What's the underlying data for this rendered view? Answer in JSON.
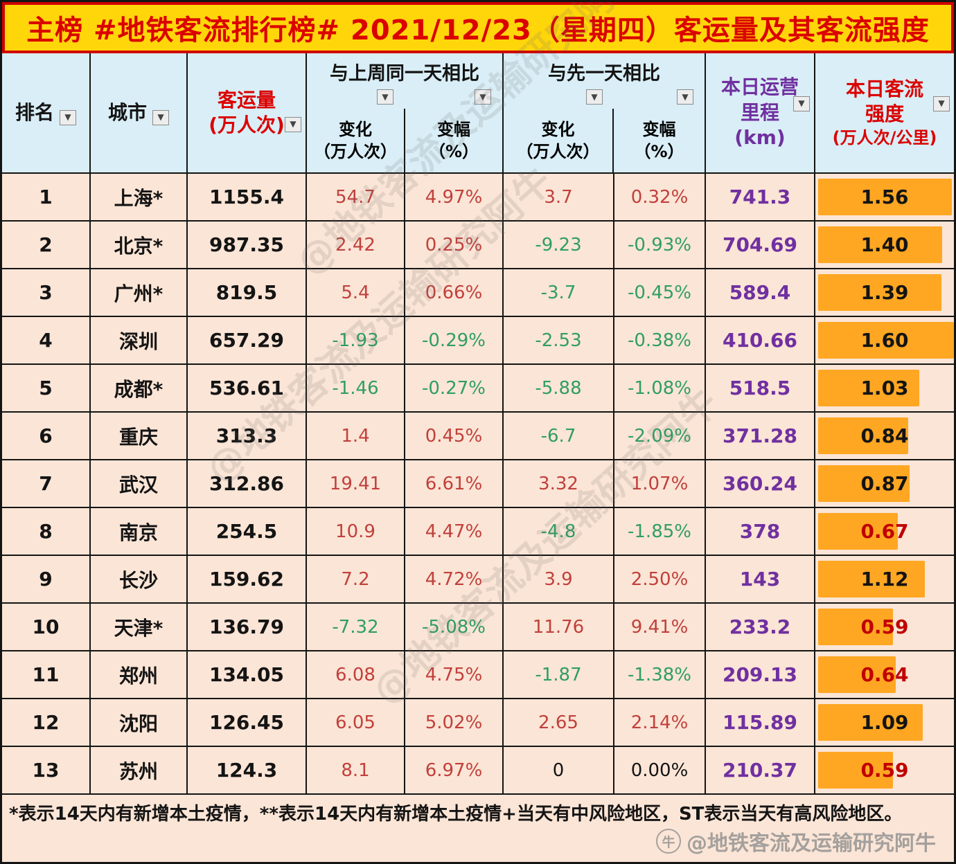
{
  "title": "主榜 #地铁客流排行榜# 2021/12/23（星期四）客运量及其客流强度",
  "header": {
    "rank": "排名",
    "city": "城市",
    "volume_line1": "客运量",
    "volume_line2": "(万人次)",
    "week_group": "与上周同一天相比",
    "day_group": "与先一天相比",
    "change_line1": "变化",
    "change_line2": "（万人次）",
    "pct_line1": "变幅",
    "pct_line2": "（%）",
    "mileage_line1": "本日运营",
    "mileage_line2": "里程",
    "mileage_line3": "(km)",
    "intensity_line1": "本日客流",
    "intensity_line2": "强度",
    "intensity_line3": "(万人次/公里)"
  },
  "chart_data": {
    "type": "table",
    "title": "地铁客流排行榜 2021/12/23（星期四）客运量及其客流强度",
    "columns": [
      "排名",
      "城市",
      "客运量(万人次)",
      "与上周同一天相比 变化(万人次)",
      "与上周同一天相比 变幅(%)",
      "与先一天相比 变化(万人次)",
      "与先一天相比 变幅(%)",
      "本日运营里程(km)",
      "本日客流强度(万人次/公里)"
    ],
    "rows": [
      {
        "rank": "1",
        "city": "上海*",
        "volume": "1155.4",
        "week_change": "54.7",
        "week_pct": "4.97%",
        "day_change": "3.7",
        "day_pct": "0.32%",
        "mileage": "741.3",
        "intensity": "1.56"
      },
      {
        "rank": "2",
        "city": "北京*",
        "volume": "987.35",
        "week_change": "2.42",
        "week_pct": "0.25%",
        "day_change": "-9.23",
        "day_pct": "-0.93%",
        "mileage": "704.69",
        "intensity": "1.40"
      },
      {
        "rank": "3",
        "city": "广州*",
        "volume": "819.5",
        "week_change": "5.4",
        "week_pct": "0.66%",
        "day_change": "-3.7",
        "day_pct": "-0.45%",
        "mileage": "589.4",
        "intensity": "1.39"
      },
      {
        "rank": "4",
        "city": "深圳",
        "volume": "657.29",
        "week_change": "-1.93",
        "week_pct": "-0.29%",
        "day_change": "-2.53",
        "day_pct": "-0.38%",
        "mileage": "410.66",
        "intensity": "1.60"
      },
      {
        "rank": "5",
        "city": "成都*",
        "volume": "536.61",
        "week_change": "-1.46",
        "week_pct": "-0.27%",
        "day_change": "-5.88",
        "day_pct": "-1.08%",
        "mileage": "518.5",
        "intensity": "1.03"
      },
      {
        "rank": "6",
        "city": "重庆",
        "volume": "313.3",
        "week_change": "1.4",
        "week_pct": "0.45%",
        "day_change": "-6.7",
        "day_pct": "-2.09%",
        "mileage": "371.28",
        "intensity": "0.84"
      },
      {
        "rank": "7",
        "city": "武汉",
        "volume": "312.86",
        "week_change": "19.41",
        "week_pct": "6.61%",
        "day_change": "3.32",
        "day_pct": "1.07%",
        "mileage": "360.24",
        "intensity": "0.87"
      },
      {
        "rank": "8",
        "city": "南京",
        "volume": "254.5",
        "week_change": "10.9",
        "week_pct": "4.47%",
        "day_change": "-4.8",
        "day_pct": "-1.85%",
        "mileage": "378",
        "intensity": "0.67"
      },
      {
        "rank": "9",
        "city": "长沙",
        "volume": "159.62",
        "week_change": "7.2",
        "week_pct": "4.72%",
        "day_change": "3.9",
        "day_pct": "2.50%",
        "mileage": "143",
        "intensity": "1.12"
      },
      {
        "rank": "10",
        "city": "天津*",
        "volume": "136.79",
        "week_change": "-7.32",
        "week_pct": "-5.08%",
        "day_change": "11.76",
        "day_pct": "9.41%",
        "mileage": "233.2",
        "intensity": "0.59"
      },
      {
        "rank": "11",
        "city": "郑州",
        "volume": "134.05",
        "week_change": "6.08",
        "week_pct": "4.75%",
        "day_change": "-1.87",
        "day_pct": "-1.38%",
        "mileage": "209.13",
        "intensity": "0.64"
      },
      {
        "rank": "12",
        "city": "沈阳",
        "volume": "126.45",
        "week_change": "6.05",
        "week_pct": "5.02%",
        "day_change": "2.65",
        "day_pct": "2.14%",
        "mileage": "115.89",
        "intensity": "1.09"
      },
      {
        "rank": "13",
        "city": "苏州",
        "volume": "124.3",
        "week_change": "8.1",
        "week_pct": "6.97%",
        "day_change": "0",
        "day_pct": "0.00%",
        "mileage": "210.37",
        "intensity": "0.59"
      }
    ],
    "bar_column": "intensity",
    "bar_max": 1.6,
    "bar_color": "#FFA722"
  },
  "footnote": "*表示14天内有新增本土疫情，**表示14天内有新增本土疫情+当天有中风险地区，ST表示当天有高风险地区。",
  "watermark": {
    "handle": "@地铁客流及运输研究阿牛"
  },
  "colors": {
    "positive": "#C1403C",
    "negative": "#2F9E63",
    "mileage": "#7030A0",
    "bar": "#FFA722",
    "title_bg": "#FFD60A",
    "title_text": "#DB0000",
    "header_bg": "#D9EEF6",
    "row_bg": "#FBE5D6"
  }
}
